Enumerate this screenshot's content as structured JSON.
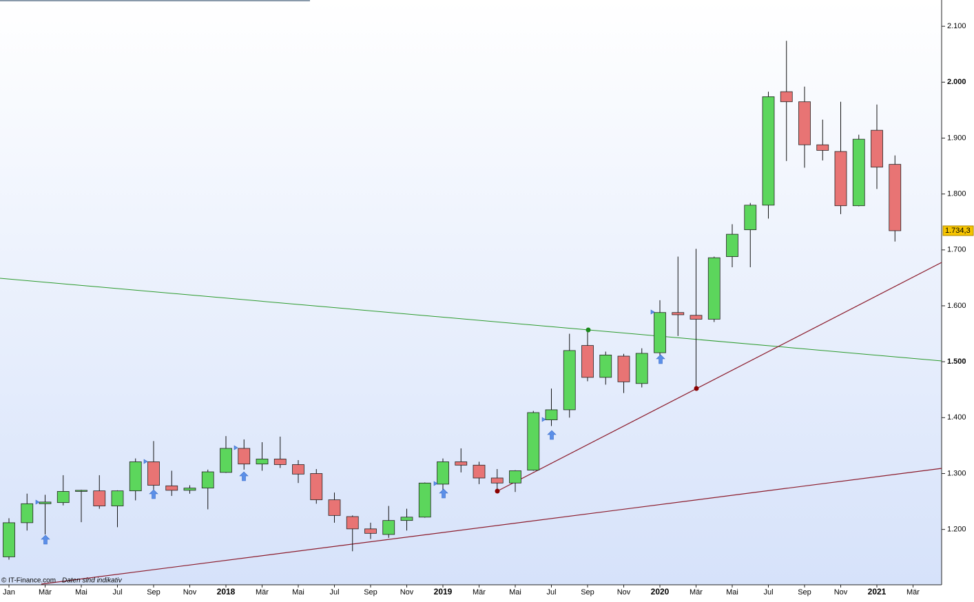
{
  "chart_data": {
    "type": "candlestick",
    "categories": [
      "Jan",
      null,
      "Mär",
      null,
      "Mai",
      null,
      "Jul",
      null,
      "Sep",
      null,
      "Nov",
      null,
      "2018",
      null,
      "Mär",
      null,
      "Mai",
      null,
      "Jul",
      null,
      "Sep",
      null,
      "Nov",
      null,
      "2019",
      null,
      "Mär",
      null,
      "Mai",
      null,
      "Jul",
      null,
      "Sep",
      null,
      "Nov",
      null,
      "2020",
      null,
      "Mär",
      null,
      "Mai",
      null,
      "Jul",
      null,
      "Sep",
      null,
      "Nov",
      null,
      "2021",
      null,
      "Mär"
    ],
    "open": [
      1151,
      1212,
      1246,
      1248,
      1268,
      1269,
      1242,
      1269,
      1321,
      1278,
      1270,
      1274,
      1302,
      1345,
      1317,
      1326,
      1316,
      1300,
      1253,
      1223,
      1201,
      1191,
      1216,
      1222,
      1281,
      1321,
      1315,
      1292,
      1283,
      1306,
      1396,
      1414,
      1529,
      1472,
      1510,
      1461,
      1516,
      1588,
      1583,
      1576,
      1688,
      1736,
      1780,
      1983,
      1965,
      1888,
      1876,
      1779,
      1914,
      1853,
      null
    ],
    "high": [
      1220,
      1264,
      1262,
      1297,
      1271,
      1297,
      1270,
      1327,
      1358,
      1305,
      1279,
      1307,
      1367,
      1361,
      1356,
      1366,
      1324,
      1308,
      1266,
      1225,
      1212,
      1242,
      1237,
      1284,
      1327,
      1345,
      1321,
      1308,
      1306,
      1412,
      1452,
      1550,
      1553,
      1518,
      1514,
      1524,
      1610,
      1688,
      1702,
      1688,
      1746,
      1784,
      1983,
      2074,
      1992,
      1933,
      1965,
      1906,
      1960,
      1869,
      null
    ],
    "low": [
      1146,
      1198,
      1191,
      1243,
      1213,
      1237,
      1204,
      1252,
      1268,
      1260,
      1264,
      1236,
      1301,
      1307,
      1305,
      1310,
      1283,
      1246,
      1212,
      1161,
      1183,
      1185,
      1198,
      1221,
      1271,
      1302,
      1281,
      1268,
      1267,
      1305,
      1385,
      1400,
      1465,
      1459,
      1444,
      1454,
      1509,
      1546,
      1451,
      1571,
      1669,
      1669,
      1756,
      1859,
      1847,
      1860,
      1764,
      1778,
      1809,
      1715,
      null
    ],
    "close": [
      1212,
      1246,
      1249,
      1268,
      1270,
      1242,
      1269,
      1321,
      1279,
      1270,
      1274,
      1303,
      1345,
      1317,
      1326,
      1316,
      1299,
      1253,
      1225,
      1201,
      1193,
      1216,
      1222,
      1283,
      1321,
      1315,
      1292,
      1283,
      1305,
      1409,
      1414,
      1520,
      1472,
      1512,
      1464,
      1515,
      1588,
      1584,
      1576,
      1686,
      1728,
      1780,
      1974,
      1965,
      1888,
      1878,
      1779,
      1898,
      1848,
      1734.3,
      null
    ],
    "up_color": "#5cd65c",
    "down_color": "#e87474",
    "ylim": [
      1101,
      2147
    ],
    "yticks": [
      {
        "value": 1200,
        "label": "1.200"
      },
      {
        "value": 1300,
        "label": "1.300"
      },
      {
        "value": 1400,
        "label": "1.400"
      },
      {
        "value": 1500,
        "label": "1.500"
      },
      {
        "value": 1600,
        "label": "1.600"
      },
      {
        "value": 1700,
        "label": "1.700"
      },
      {
        "value": 1800,
        "label": "1.800"
      },
      {
        "value": 1900,
        "label": "1.900"
      },
      {
        "value": 2000,
        "label": "2.000"
      },
      {
        "value": 2100,
        "label": "2.100"
      }
    ],
    "last_price": {
      "value": 1734.3,
      "label": "1.734,3"
    },
    "footer": "© IT-Finance.com",
    "note": "Daten sind indikativ"
  }
}
